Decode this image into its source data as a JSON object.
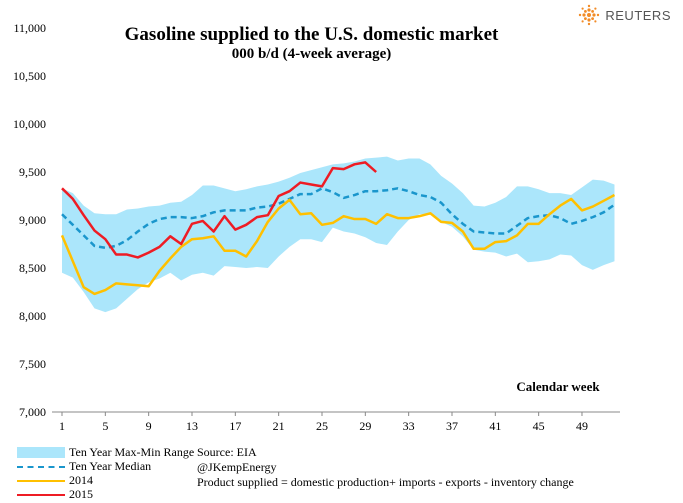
{
  "logo": "REUTERS",
  "chart_data": {
    "type": "line",
    "title": "Gasoline supplied to the U.S. domestic market",
    "subtitle": "000 b/d (4-week average)",
    "xlabel": "Calendar week",
    "ylabel": "",
    "ylim": [
      7000,
      11000
    ],
    "xlim": [
      1,
      52
    ],
    "yticks": [
      "7,000",
      "7,500",
      "8,000",
      "8,500",
      "9,000",
      "9,500",
      "10,000",
      "10,500",
      "11,000"
    ],
    "ytick_values": [
      7000,
      7500,
      8000,
      8500,
      9000,
      9500,
      10000,
      10500,
      11000
    ],
    "xticks": [
      "1",
      "5",
      "9",
      "13",
      "17",
      "21",
      "25",
      "29",
      "33",
      "37",
      "41",
      "45",
      "49"
    ],
    "xtick_values": [
      1,
      5,
      9,
      13,
      17,
      21,
      25,
      29,
      33,
      37,
      41,
      45,
      49
    ],
    "range": {
      "name": "Ten Year Max-Min Range",
      "color": "#abe6fb",
      "max": [
        9330,
        9280,
        9150,
        9070,
        9060,
        9060,
        9110,
        9120,
        9140,
        9150,
        9180,
        9190,
        9260,
        9360,
        9360,
        9330,
        9300,
        9320,
        9350,
        9370,
        9400,
        9440,
        9490,
        9520,
        9550,
        9580,
        9590,
        9610,
        9640,
        9650,
        9660,
        9620,
        9640,
        9640,
        9580,
        9460,
        9380,
        9280,
        9150,
        9140,
        9180,
        9240,
        9350,
        9350,
        9320,
        9280,
        9280,
        9260,
        9340,
        9420,
        9410,
        9370
      ],
      "min": [
        8450,
        8400,
        8250,
        8080,
        8040,
        8080,
        8180,
        8280,
        8350,
        8390,
        8450,
        8370,
        8430,
        8450,
        8420,
        8520,
        8510,
        8500,
        8510,
        8500,
        8620,
        8720,
        8800,
        8800,
        8770,
        8920,
        8880,
        8860,
        8820,
        8760,
        8740,
        8880,
        9000,
        9060,
        9060,
        8980,
        8930,
        8830,
        8690,
        8670,
        8660,
        8620,
        8650,
        8560,
        8570,
        8590,
        8640,
        8630,
        8530,
        8480,
        8530,
        8570
      ]
    },
    "series": [
      {
        "name": "Ten Year Median",
        "color": "#1a96cc",
        "dashed": true,
        "values": [
          9060,
          8950,
          8840,
          8730,
          8710,
          8730,
          8790,
          8880,
          8960,
          9010,
          9030,
          9030,
          9020,
          9040,
          9080,
          9100,
          9100,
          9100,
          9130,
          9140,
          9170,
          9220,
          9270,
          9270,
          9330,
          9290,
          9230,
          9260,
          9300,
          9300,
          9310,
          9330,
          9300,
          9260,
          9240,
          9180,
          9060,
          8960,
          8880,
          8870,
          8860,
          8860,
          8940,
          9020,
          9040,
          9050,
          9020,
          8960,
          8990,
          9030,
          9080,
          9160
        ]
      },
      {
        "name": "2014",
        "color": "#ffc000",
        "dashed": false,
        "values": [
          8840,
          8570,
          8300,
          8230,
          8270,
          8340,
          8330,
          8320,
          8310,
          8470,
          8600,
          8720,
          8800,
          8810,
          8830,
          8680,
          8680,
          8620,
          8780,
          8980,
          9120,
          9210,
          9060,
          9070,
          8950,
          8970,
          9040,
          9010,
          9010,
          8960,
          9060,
          9020,
          9020,
          9040,
          9070,
          8980,
          8970,
          8880,
          8700,
          8700,
          8770,
          8780,
          8840,
          8960,
          8960,
          9060,
          9150,
          9220,
          9100,
          9140,
          9200,
          9260
        ]
      },
      {
        "name": "2015",
        "color": "#ee1c24",
        "dashed": false,
        "values": [
          9330,
          9220,
          9050,
          8890,
          8800,
          8640,
          8640,
          8610,
          8660,
          8720,
          8830,
          8750,
          8960,
          8990,
          8880,
          9040,
          8900,
          8950,
          9030,
          9050,
          9250,
          9300,
          9390,
          9370,
          9350,
          9540,
          9530,
          9580,
          9600,
          9500
        ]
      }
    ]
  },
  "source": {
    "line1": "Source: EIA",
    "line2": "@JKempEnergy",
    "line3": "Product supplied = domestic production+ imports - exports - inventory change"
  }
}
